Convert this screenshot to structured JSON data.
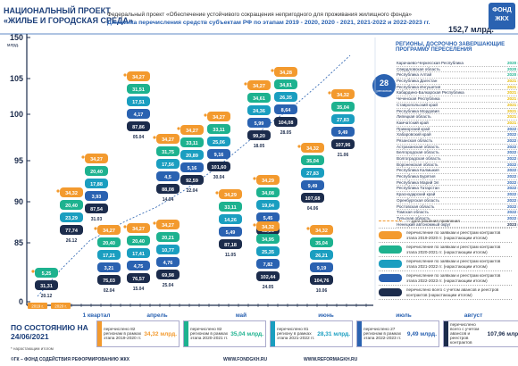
{
  "header": {
    "project_lines": [
      "НАЦИОНАЛЬНЫЙ ПРОЕКТ",
      "«ЖИЛЬЕ И ГОРОДСКАЯ СРЕДА»"
    ],
    "federal_project": "Федеральный проект «Обеспечение устойчивого сокращения непригодного для проживания жилищного фонда»",
    "title": "Динамика перечисления средств субъектам РФ по этапам 2019 - 2020, 2020 - 2021, 2021-2022 и 2022-2023 гг.",
    "total": "152,7 млрд.",
    "logo": "ФОНД ЖКХ"
  },
  "y_axis": {
    "unit": "млрд.",
    "ticks": [
      "150",
      "105",
      "100",
      "95",
      "90",
      "85",
      "0"
    ]
  },
  "x_axis": {
    "years": [
      "2019 г.",
      "2020 г."
    ],
    "months": [
      "1 квартал",
      "апрель",
      "май",
      "июнь",
      "июль",
      "август"
    ]
  },
  "columns": [
    {
      "date": "20.12",
      "pills": [
        {
          "text": "5,25",
          "color": "#1db28f"
        },
        {
          "text": "31,31",
          "color": "#1c2c4c"
        }
      ]
    },
    {
      "date": "26.12",
      "pills": [
        {
          "text": "34,32",
          "color": "#f39a2e"
        },
        {
          "text": "20,40",
          "color": "#1db28f"
        },
        {
          "text": "23,29",
          "color": "#1a9ec0"
        },
        {
          "text": "77,74",
          "color": "#1c2c4c"
        }
      ]
    },
    {
      "date": "31.03",
      "pills": [
        {
          "text": "34,27",
          "color": "#f39a2e"
        },
        {
          "text": "20,40",
          "color": "#1db28f"
        },
        {
          "text": "17,88",
          "color": "#1a9ec0"
        },
        {
          "text": "3,93",
          "color": "#2a62b1"
        },
        {
          "text": "87,54",
          "color": "#1c2c4c"
        }
      ]
    },
    {
      "date": "02.04",
      "pills": [
        {
          "text": "34,27",
          "color": "#f39a2e"
        },
        {
          "text": "20,40",
          "color": "#1db28f"
        },
        {
          "text": "17,21",
          "color": "#1a9ec0"
        },
        {
          "text": "3,21",
          "color": "#2a62b1"
        },
        {
          "text": "75,03",
          "color": "#1c2c4c"
        }
      ]
    },
    {
      "date": "05.04",
      "pills": [
        {
          "text": "34,27",
          "color": "#f39a2e"
        },
        {
          "text": "31,51",
          "color": "#1db28f"
        },
        {
          "text": "17,51",
          "color": "#1a9ec0"
        },
        {
          "text": "4,17",
          "color": "#2a62b1"
        },
        {
          "text": "87,86",
          "color": "#1c2c4c"
        }
      ]
    },
    {
      "date": "15.04",
      "pills": [
        {
          "text": "34,27",
          "color": "#f39a2e"
        },
        {
          "text": "20,40",
          "color": "#1db28f"
        },
        {
          "text": "17,41",
          "color": "#1a9ec0"
        },
        {
          "text": "4,75",
          "color": "#2a62b1"
        },
        {
          "text": "76,57",
          "color": "#1c2c4c"
        }
      ]
    },
    {
      "date": "25.04",
      "pills": [
        {
          "text": "34,27",
          "color": "#f39a2e"
        },
        {
          "text": "20,21",
          "color": "#1db28f"
        },
        {
          "text": "10,77",
          "color": "#1a9ec0"
        },
        {
          "text": "4,76",
          "color": "#2a62b1"
        },
        {
          "text": "69,98",
          "color": "#1c2c4c"
        }
      ]
    },
    {
      "date": "14.04",
      "pills": [
        {
          "text": "34,27",
          "color": "#f39a2e"
        },
        {
          "text": "31,75",
          "color": "#1db28f"
        },
        {
          "text": "17,56",
          "color": "#1a9ec0"
        },
        {
          "text": "4,5",
          "color": "#2a62b1"
        },
        {
          "text": "88,08",
          "color": "#1c2c4c"
        }
      ]
    },
    {
      "date": "22.04",
      "pills": [
        {
          "text": "34,27",
          "color": "#f39a2e"
        },
        {
          "text": "33,11",
          "color": "#1db28f"
        },
        {
          "text": "20,89",
          "color": "#1a9ec0"
        },
        {
          "text": "5,16",
          "color": "#2a62b1"
        },
        {
          "text": "92,59",
          "color": "#1c2c4c"
        }
      ]
    },
    {
      "date": "30.04",
      "pills": [
        {
          "text": "34,27",
          "color": "#f39a2e"
        },
        {
          "text": "33,11",
          "color": "#1db28f"
        },
        {
          "text": "25,06",
          "color": "#1a9ec0"
        },
        {
          "text": "9,16",
          "color": "#2a62b1"
        },
        {
          "text": "101,60",
          "color": "#1c2c4c"
        }
      ]
    },
    {
      "date": "11.05",
      "pills": [
        {
          "text": "34,29",
          "color": "#f39a2e"
        },
        {
          "text": "33,11",
          "color": "#1db28f"
        },
        {
          "text": "14,26",
          "color": "#1a9ec0"
        },
        {
          "text": "5,49",
          "color": "#2a62b1"
        },
        {
          "text": "87,18",
          "color": "#1c2c4c"
        }
      ]
    },
    {
      "date": "18.05",
      "pills": [
        {
          "text": "34,27",
          "color": "#f39a2e"
        },
        {
          "text": "34,61",
          "color": "#1db28f"
        },
        {
          "text": "24,36",
          "color": "#1a9ec0"
        },
        {
          "text": "5,99",
          "color": "#2a62b1"
        },
        {
          "text": "99,20",
          "color": "#1c2c4c"
        }
      ]
    },
    {
      "date": "19.05",
      "pills": [
        {
          "text": "34,29",
          "color": "#f39a2e"
        },
        {
          "text": "34,08",
          "color": "#1db28f"
        },
        {
          "text": "19,04",
          "color": "#1a9ec0"
        },
        {
          "text": "5,45",
          "color": "#2a62b1"
        },
        {
          "text": "92,86",
          "color": "#1c2c4c"
        }
      ]
    },
    {
      "date": "24.05",
      "pills": [
        {
          "text": "34,32",
          "color": "#f39a2e"
        },
        {
          "text": "34,95",
          "color": "#1db28f"
        },
        {
          "text": "25,35",
          "color": "#1a9ec0"
        },
        {
          "text": "7,82",
          "color": "#2a62b1"
        },
        {
          "text": "102,44",
          "color": "#1c2c4c"
        }
      ]
    },
    {
      "date": "28.05",
      "pills": [
        {
          "text": "34,28",
          "color": "#f39a2e"
        },
        {
          "text": "34,81",
          "color": "#1db28f"
        },
        {
          "text": "26,35",
          "color": "#1a9ec0"
        },
        {
          "text": "8,64",
          "color": "#2a62b1"
        },
        {
          "text": "104,08",
          "color": "#1c2c4c"
        }
      ]
    },
    {
      "date": "04.06",
      "pills": [
        {
          "text": "34,32",
          "color": "#f39a2e"
        },
        {
          "text": "35,04",
          "color": "#1db28f"
        },
        {
          "text": "27,83",
          "color": "#1a9ec0"
        },
        {
          "text": "9,49",
          "color": "#2a62b1"
        },
        {
          "text": "107,68",
          "color": "#1c2c4c"
        }
      ]
    },
    {
      "date": "10.06",
      "pills": [
        {
          "text": "34,32",
          "color": "#f39a2e"
        },
        {
          "text": "35,04",
          "color": "#1db28f"
        },
        {
          "text": "26,21",
          "color": "#1a9ec0"
        },
        {
          "text": "9,19",
          "color": "#2a62b1"
        },
        {
          "text": "104,76",
          "color": "#1c2c4c"
        }
      ]
    },
    {
      "date": "21.06",
      "pills": [
        {
          "text": "34,32",
          "color": "#f39a2e"
        },
        {
          "text": "35,04",
          "color": "#1db28f"
        },
        {
          "text": "27,83",
          "color": "#1a9ec0"
        },
        {
          "text": "9,49",
          "color": "#2a62b1"
        },
        {
          "text": "107,96",
          "color": "#1c2c4c"
        }
      ]
    }
  ],
  "regions": {
    "title": "РЕГИОНЫ, ДОСРОЧНО ЗАВЕРШАЮЩИЕ ПРОГРАММУ ПЕРЕСЕЛЕНИЯ",
    "count": "28",
    "count_label": "регионов",
    "rows": [
      [
        "Карачаево-Черкесская Республика",
        "2020 год"
      ],
      [
        "Свердловская область",
        "2020 год"
      ],
      [
        "Республика Алтай",
        "2020 год"
      ],
      [
        "Республика Дагестан",
        "2021 год"
      ],
      [
        "Республика Ингушетия",
        "2021 год"
      ],
      [
        "Кабардино-Балкарская Республика",
        "2021 год"
      ],
      [
        "Чеченская Республика",
        "2021 год"
      ],
      [
        "Ставропольский край",
        "2021 год"
      ],
      [
        "Республика Мордовия",
        "2021 год"
      ],
      [
        "Липецкая область",
        "2021 год"
      ],
      [
        "Камчатский край",
        "2021 год"
      ],
      [
        "Приморский край",
        "2022 год"
      ],
      [
        "Хабаровский край",
        "2022 год"
      ],
      [
        "Рязанская область",
        "2022 год"
      ],
      [
        "Астраханская область",
        "2022 год"
      ],
      [
        "Белгородская область",
        "2022 год"
      ],
      [
        "Волгоградская область",
        "2022 год"
      ],
      [
        "Воронежская область",
        "2022 год"
      ],
      [
        "Республика Калмыкия",
        "2022 год"
      ],
      [
        "Республика Бурятия",
        "2022 год"
      ],
      [
        "Республика Марий Эл",
        "2022 год"
      ],
      [
        "Республика Татарстан",
        "2022 год"
      ],
      [
        "Краснодарский край",
        "2022 год"
      ],
      [
        "Оренбургская область",
        "2022 год"
      ],
      [
        "Ростовская область",
        "2022 год"
      ],
      [
        "Томская область",
        "2022 год"
      ],
      [
        "Тульская область",
        "2022 год"
      ],
      [
        "Ненецкий автономный округ",
        "2023 год"
      ]
    ]
  },
  "legend": [
    {
      "text": "— дата решения правления",
      "color": "#f39a2e"
    },
    {
      "text": "перечисление по заявкам и реестрам контрактов этапа 2019-2020 гг. (нарастающим итогом)",
      "color": "#f39a2e"
    },
    {
      "text": "перечисление по заявкам и реестрам контрактов этапа 2020-2021 гг. (нарастающим итогом)",
      "color": "#1db28f"
    },
    {
      "text": "перечисление по заявкам и реестрам контрактов этапа 2021-2022 гг. (нарастающим итогом)",
      "color": "#1a9ec0"
    },
    {
      "text": "перечисление по заявкам и реестрам контрактов этапа 2022-2023 гг. (нарастающим итогом)",
      "color": "#2a62b1"
    },
    {
      "text": "перечислено всего с учетом авансов и реестров контрактов (нарастающим итогом)",
      "color": "#1c2c4c"
    }
  ],
  "status": {
    "title": "ПО СОСТОЯНИЮ НА 24/06/2021",
    "note": "* нарастающим итогом"
  },
  "summary": [
    {
      "text": "перечислено 82 регионам в рамках этапа 2019-2020 гг.",
      "value": "34,32 млрд.",
      "color": "#f39a2e"
    },
    {
      "text": "перечислено 82 регионам в рамках этапа 2020-2021 гг.",
      "value": "35,04 млрд.",
      "color": "#1db28f"
    },
    {
      "text": "перечислено 81 региону в рамках этапа 2021-2022 гг.",
      "value": "28,31 млрд.",
      "color": "#1a9ec0"
    },
    {
      "text": "перечислено 27 регионам в рамках этапа 2022-2023 гг.",
      "value": "9,49 млрд.",
      "color": "#2a62b1"
    },
    {
      "text": "перечислено всего с учетом авансов и реестров контрактов",
      "value": "107,96 млрд.",
      "color": "#1c2c4c"
    }
  ],
  "footer": [
    "©ГК – ФОНД СОДЕЙСТВИЯ РЕФОРМИРОВАНИЮ ЖКХ",
    "WWW.FONDGKH.RU",
    "WWW.REFORMAGKH.RU"
  ]
}
